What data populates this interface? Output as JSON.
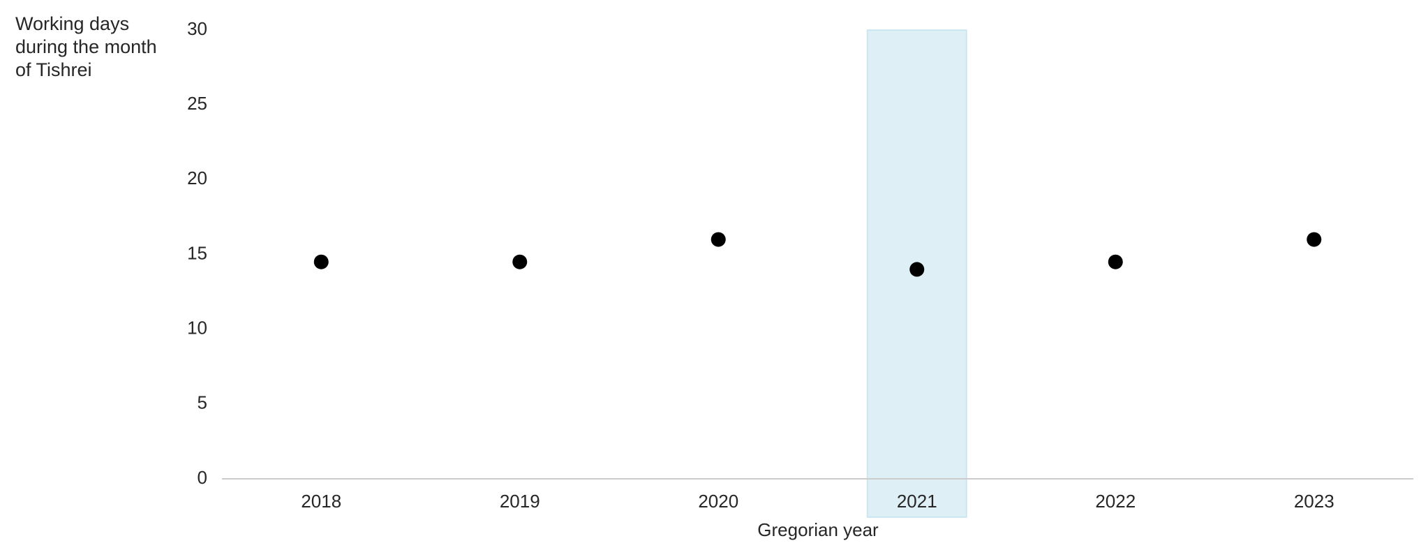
{
  "chart_data": {
    "type": "scatter",
    "y_label": "Working days\nduring the month\nof Tishrei",
    "x_label": "Gregorian year",
    "categories": [
      "2018",
      "2019",
      "2020",
      "2021",
      "2022",
      "2023"
    ],
    "values": [
      14.5,
      14.5,
      16,
      14,
      14.5,
      16
    ],
    "color": "#000000",
    "highlight": "2021",
    "highlight_color": "#add8e6",
    "ylim": [
      0,
      30
    ],
    "yticks": [
      0,
      5,
      10,
      15,
      20,
      25,
      30
    ],
    "grid": false
  }
}
